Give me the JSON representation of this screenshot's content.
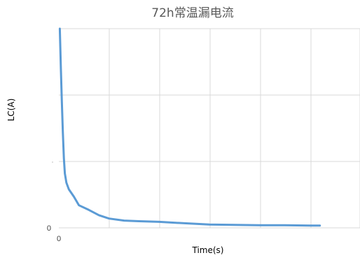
{
  "chart_data": {
    "type": "line",
    "title": "72h常温漏电流",
    "xlabel": "Time(s)",
    "ylabel": "LC(A)",
    "x_tick_labels": [
      "0"
    ],
    "y_tick_labels": [
      "0"
    ],
    "xlim": [
      0,
      6
    ],
    "ylim": [
      0,
      3
    ],
    "grid": true,
    "legend": "none",
    "series_color": "#5b9bd5",
    "grid_color": "#d9d9d9",
    "series": [
      {
        "x": [
          0.02,
          0.04,
          0.06,
          0.08,
          0.1,
          0.12,
          0.15,
          0.2,
          0.3,
          0.4,
          0.6,
          0.8,
          1.0,
          1.3,
          1.6,
          2.0,
          2.5,
          3.0,
          3.5,
          4.0,
          4.5,
          5.0,
          5.2
        ],
        "y": [
          3.0,
          2.4,
          1.9,
          1.45,
          1.05,
          0.82,
          0.68,
          0.58,
          0.47,
          0.34,
          0.27,
          0.19,
          0.14,
          0.11,
          0.1,
          0.09,
          0.07,
          0.05,
          0.045,
          0.04,
          0.04,
          0.035,
          0.035
        ]
      }
    ]
  }
}
